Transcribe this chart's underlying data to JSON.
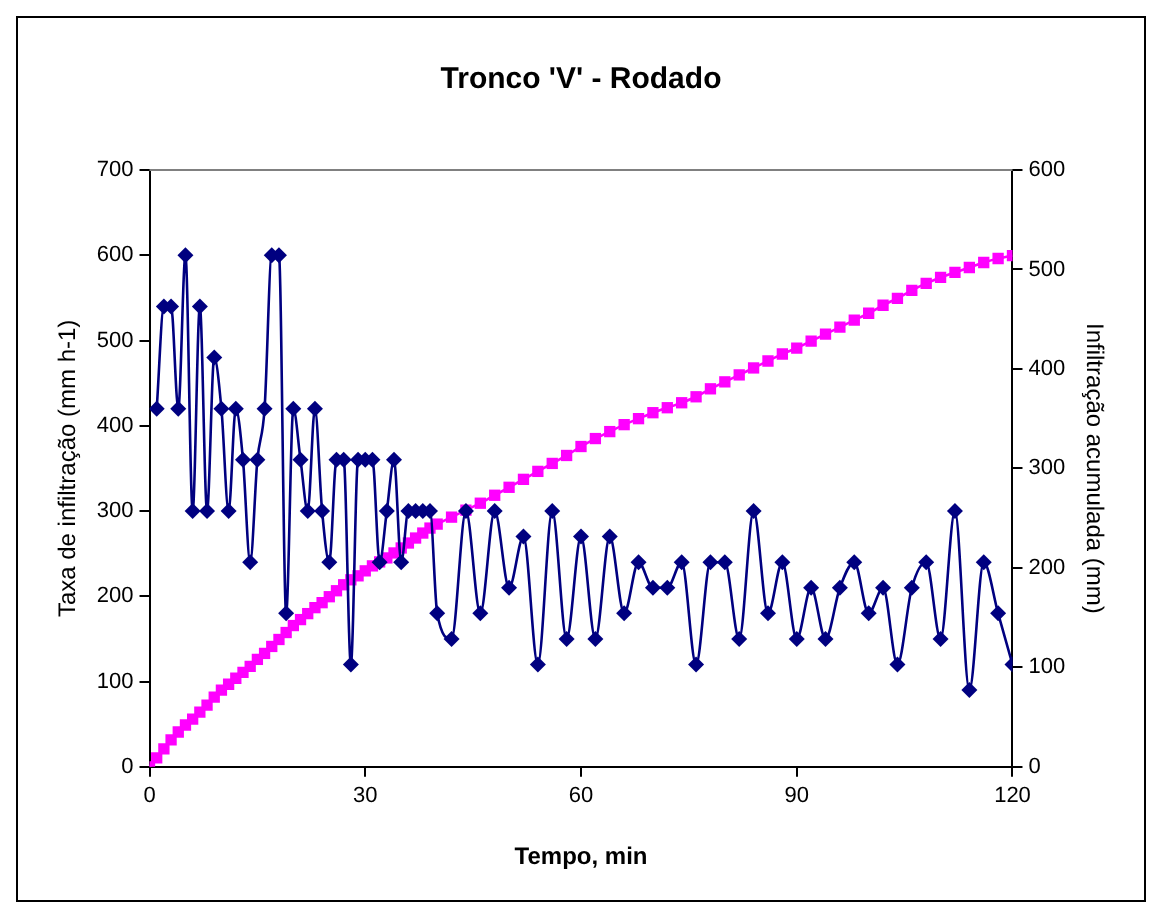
{
  "chart_data": {
    "type": "line",
    "title": "Tronco 'V' - Rodado",
    "xlabel": "Tempo, min",
    "ylabel": "Taxa de infiltração (mm h-1)",
    "y2label": "Infiltração acumulada (mm)",
    "xlim": [
      0,
      120
    ],
    "xticks": [
      0,
      30,
      60,
      90,
      120
    ],
    "ylim": [
      0,
      700
    ],
    "yticks": [
      0,
      100,
      200,
      300,
      400,
      500,
      600,
      700
    ],
    "y2lim": [
      0,
      600
    ],
    "y2ticks": [
      0,
      100,
      200,
      300,
      400,
      500,
      600
    ],
    "grid": false,
    "legend": false,
    "series": [
      {
        "color": "#000080",
        "marker": "diamond",
        "x": [
          1,
          2,
          3,
          4,
          5,
          6,
          7,
          8,
          9,
          10,
          11,
          12,
          13,
          14,
          15,
          16,
          17,
          18,
          19,
          20,
          21,
          22,
          23,
          24,
          25,
          26,
          27,
          28,
          29,
          30,
          31,
          32,
          33,
          34,
          35,
          36,
          37,
          38,
          39,
          40,
          42,
          44,
          46,
          48,
          50,
          52,
          54,
          56,
          58,
          60,
          62,
          64,
          66,
          68,
          70,
          72,
          74,
          76,
          78,
          80,
          82,
          84,
          86,
          88,
          90,
          92,
          94,
          96,
          98,
          100,
          102,
          104,
          106,
          108,
          110,
          112,
          114,
          116,
          118,
          120
        ],
        "values": [
          420,
          540,
          540,
          420,
          600,
          300,
          540,
          300,
          480,
          420,
          300,
          420,
          360,
          240,
          360,
          420,
          600,
          600,
          180,
          420,
          360,
          300,
          420,
          300,
          240,
          360,
          360,
          120,
          360,
          360,
          360,
          240,
          300,
          360,
          240,
          300,
          300,
          300,
          300,
          180,
          150,
          300,
          180,
          300,
          210,
          270,
          120,
          300,
          150,
          270,
          150,
          270,
          180,
          240,
          210,
          210,
          240,
          120,
          240,
          240,
          150,
          300,
          180,
          240,
          150,
          210,
          150,
          210,
          240,
          180,
          210,
          120,
          210,
          240,
          150,
          300,
          90,
          240,
          180,
          120
        ]
      },
      {
        "color": "#ff00ff",
        "marker": "square",
        "axis": "y2",
        "x": [
          0,
          1,
          2,
          3,
          4,
          5,
          6,
          7,
          8,
          9,
          10,
          11,
          12,
          13,
          14,
          15,
          16,
          17,
          18,
          19,
          20,
          21,
          22,
          23,
          24,
          25,
          26,
          27,
          28,
          29,
          30,
          31,
          32,
          33,
          34,
          35,
          36,
          37,
          38,
          39,
          40,
          42,
          44,
          46,
          48,
          50,
          52,
          54,
          56,
          58,
          60,
          62,
          64,
          66,
          68,
          70,
          72,
          74,
          76,
          78,
          80,
          82,
          84,
          86,
          88,
          90,
          92,
          94,
          96,
          98,
          100,
          102,
          104,
          106,
          108,
          110,
          112,
          114,
          116,
          118,
          120
        ],
        "values": [
          0,
          9,
          18,
          27,
          35,
          42,
          48,
          55,
          62,
          70,
          77,
          83,
          89,
          95,
          101,
          108,
          114,
          121,
          128,
          135,
          142,
          148,
          154,
          160,
          165,
          171,
          177,
          183,
          188,
          192,
          197,
          202,
          206,
          210,
          215,
          220,
          225,
          230,
          235,
          240,
          244,
          251,
          258,
          265,
          273,
          281,
          289,
          297,
          305,
          313,
          322,
          330,
          337,
          344,
          350,
          356,
          361,
          366,
          372,
          380,
          387,
          394,
          401,
          408,
          415,
          421,
          428,
          435,
          442,
          449,
          456,
          464,
          471,
          479,
          486,
          492,
          497,
          502,
          507,
          511,
          514
        ]
      }
    ]
  }
}
